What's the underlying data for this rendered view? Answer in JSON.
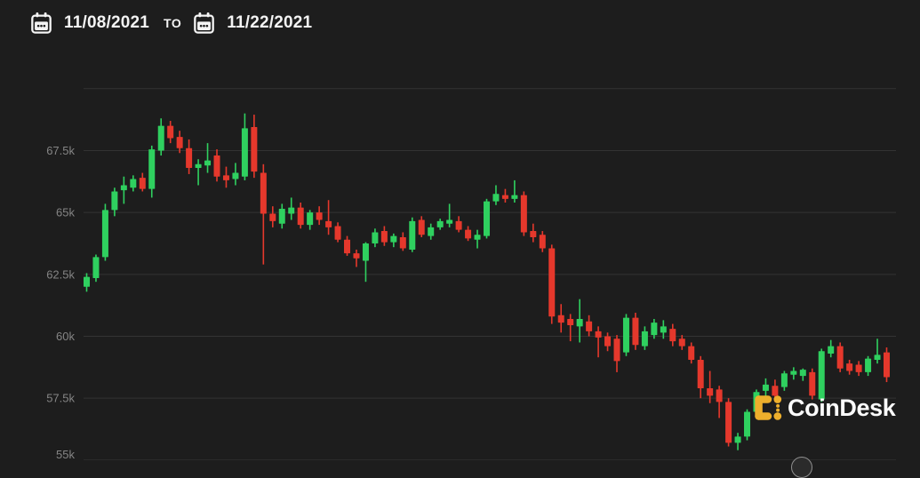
{
  "header": {
    "start_date": "11/08/2021",
    "separator_label": "TO",
    "end_date": "11/22/2021"
  },
  "watermark": {
    "brand_name": "CoinDesk",
    "icon_color": "#edaf2c"
  },
  "chart_data": {
    "type": "candlestick",
    "title": "",
    "date_range_start": "11/08/2021",
    "date_range_end": "11/22/2021",
    "unit": "USD thousands",
    "ylim": [
      55,
      70.2
    ],
    "grid": true,
    "legend": "none",
    "up_color": "#2fd05f",
    "down_color": "#e5382c",
    "grid_color": "#333333",
    "tick_color": "#858585",
    "y_ticks": [
      {
        "value": 70,
        "label": ""
      },
      {
        "value": 67.5,
        "label": "67.5k"
      },
      {
        "value": 65,
        "label": "65k"
      },
      {
        "value": 62.5,
        "label": "62.5k"
      },
      {
        "value": 60,
        "label": "60k"
      },
      {
        "value": 57.5,
        "label": "57.5k"
      },
      {
        "value": 55,
        "label": "55k"
      }
    ],
    "candles": [
      [
        62.0,
        62.55,
        61.8,
        62.4
      ],
      [
        62.35,
        63.3,
        62.2,
        63.2
      ],
      [
        63.2,
        65.35,
        63.05,
        65.1
      ],
      [
        65.1,
        66.0,
        64.85,
        65.85
      ],
      [
        65.9,
        66.45,
        65.35,
        66.1
      ],
      [
        66.0,
        66.5,
        65.85,
        66.35
      ],
      [
        66.4,
        66.6,
        65.85,
        65.95
      ],
      [
        65.95,
        67.7,
        65.6,
        67.55
      ],
      [
        67.5,
        68.8,
        67.3,
        68.5
      ],
      [
        68.5,
        68.7,
        67.8,
        68.0
      ],
      [
        68.05,
        68.3,
        67.4,
        67.6
      ],
      [
        67.6,
        67.95,
        66.55,
        66.8
      ],
      [
        66.8,
        67.15,
        66.1,
        66.95
      ],
      [
        66.9,
        67.8,
        66.6,
        67.1
      ],
      [
        67.3,
        67.55,
        66.25,
        66.45
      ],
      [
        66.5,
        66.85,
        66.0,
        66.3
      ],
      [
        66.35,
        67.0,
        66.1,
        66.6
      ],
      [
        66.45,
        69.0,
        66.3,
        68.4
      ],
      [
        68.45,
        68.95,
        66.4,
        66.65
      ],
      [
        66.6,
        66.95,
        62.9,
        64.95
      ],
      [
        64.95,
        65.25,
        64.4,
        64.65
      ],
      [
        64.55,
        65.35,
        64.35,
        65.15
      ],
      [
        64.95,
        65.6,
        64.7,
        65.2
      ],
      [
        65.2,
        65.4,
        64.35,
        64.5
      ],
      [
        64.5,
        65.1,
        64.3,
        65.0
      ],
      [
        65.0,
        65.25,
        64.5,
        64.7
      ],
      [
        64.65,
        65.5,
        64.1,
        64.4
      ],
      [
        64.45,
        64.6,
        63.8,
        63.9
      ],
      [
        63.9,
        64.05,
        63.25,
        63.35
      ],
      [
        63.35,
        63.5,
        62.8,
        63.15
      ],
      [
        63.05,
        63.8,
        62.2,
        63.75
      ],
      [
        63.75,
        64.35,
        63.6,
        64.2
      ],
      [
        64.25,
        64.45,
        63.65,
        63.8
      ],
      [
        63.8,
        64.15,
        63.6,
        64.05
      ],
      [
        64.0,
        64.2,
        63.45,
        63.55
      ],
      [
        63.5,
        64.8,
        63.4,
        64.65
      ],
      [
        64.7,
        64.85,
        64.0,
        64.1
      ],
      [
        64.05,
        64.55,
        63.9,
        64.4
      ],
      [
        64.4,
        64.75,
        64.3,
        64.65
      ],
      [
        64.55,
        65.35,
        64.4,
        64.7
      ],
      [
        64.65,
        64.85,
        64.2,
        64.3
      ],
      [
        64.3,
        64.45,
        63.85,
        63.95
      ],
      [
        63.9,
        64.3,
        63.55,
        64.1
      ],
      [
        64.05,
        65.55,
        63.95,
        65.45
      ],
      [
        65.45,
        66.1,
        65.3,
        65.75
      ],
      [
        65.7,
        65.95,
        65.4,
        65.55
      ],
      [
        65.55,
        66.3,
        65.4,
        65.7
      ],
      [
        65.7,
        65.85,
        64.05,
        64.2
      ],
      [
        64.25,
        64.55,
        63.8,
        64.0
      ],
      [
        64.1,
        64.25,
        63.4,
        63.55
      ],
      [
        63.55,
        63.7,
        60.5,
        60.8
      ],
      [
        60.85,
        61.3,
        60.15,
        60.55
      ],
      [
        60.7,
        60.9,
        59.8,
        60.45
      ],
      [
        60.4,
        61.5,
        59.75,
        60.7
      ],
      [
        60.6,
        60.85,
        60.0,
        60.2
      ],
      [
        60.2,
        60.4,
        59.15,
        59.95
      ],
      [
        60.0,
        60.15,
        59.4,
        59.6
      ],
      [
        59.9,
        60.05,
        58.55,
        59.0
      ],
      [
        59.35,
        60.9,
        59.2,
        60.75
      ],
      [
        60.75,
        60.95,
        59.45,
        59.65
      ],
      [
        59.6,
        60.4,
        59.45,
        60.2
      ],
      [
        60.05,
        60.7,
        59.9,
        60.55
      ],
      [
        60.15,
        60.65,
        59.9,
        60.4
      ],
      [
        60.3,
        60.5,
        59.6,
        59.8
      ],
      [
        59.9,
        60.05,
        59.45,
        59.6
      ],
      [
        59.6,
        59.75,
        58.9,
        59.05
      ],
      [
        59.05,
        59.2,
        57.5,
        57.9
      ],
      [
        57.9,
        58.6,
        57.3,
        57.6
      ],
      [
        57.85,
        58.0,
        56.7,
        57.35
      ],
      [
        57.35,
        57.5,
        55.55,
        55.7
      ],
      [
        55.7,
        56.1,
        55.4,
        55.95
      ],
      [
        55.95,
        57.05,
        55.8,
        56.95
      ],
      [
        56.95,
        57.85,
        56.85,
        57.75
      ],
      [
        57.8,
        58.3,
        57.55,
        58.05
      ],
      [
        58.0,
        58.25,
        57.35,
        57.6
      ],
      [
        57.95,
        58.6,
        57.8,
        58.5
      ],
      [
        58.45,
        58.75,
        58.25,
        58.6
      ],
      [
        58.4,
        58.7,
        58.2,
        58.65
      ],
      [
        58.55,
        58.7,
        57.45,
        57.6
      ],
      [
        57.45,
        59.5,
        57.35,
        59.4
      ],
      [
        59.3,
        59.85,
        59.15,
        59.6
      ],
      [
        59.6,
        59.75,
        58.55,
        58.7
      ],
      [
        58.9,
        59.05,
        58.45,
        58.6
      ],
      [
        58.85,
        59.0,
        58.4,
        58.55
      ],
      [
        58.55,
        59.2,
        58.4,
        59.1
      ],
      [
        59.05,
        59.9,
        58.9,
        59.25
      ],
      [
        59.35,
        59.55,
        58.15,
        58.35
      ]
    ]
  }
}
